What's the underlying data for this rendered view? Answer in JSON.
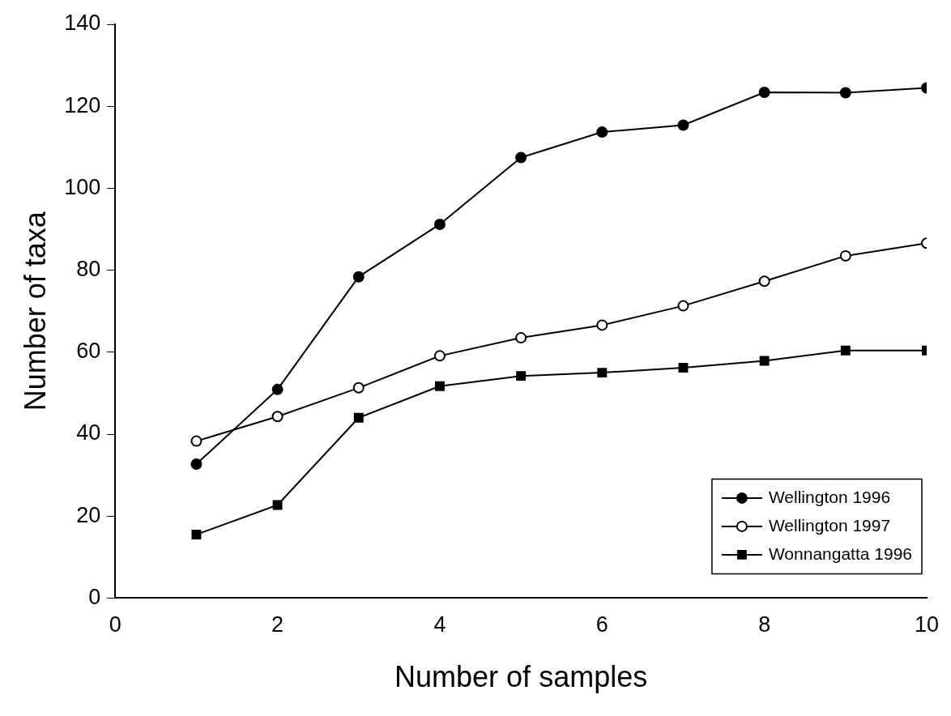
{
  "chart_data": {
    "type": "line",
    "xlabel": "Number of samples",
    "ylabel": "Number of taxa",
    "x": [
      1,
      2,
      3,
      4,
      5,
      6,
      7,
      8,
      9,
      10
    ],
    "xlim": [
      0,
      10
    ],
    "xticks": [
      0,
      2,
      4,
      6,
      8,
      10
    ],
    "ylim": [
      0,
      140
    ],
    "yticks": [
      0,
      20,
      40,
      60,
      80,
      100,
      120,
      140
    ],
    "grid": false,
    "legend": "bottom right",
    "line_style": "solid",
    "series": [
      {
        "name": "Wellington 1996",
        "color": "#000000",
        "marker": "circle",
        "values": [
          32.7,
          50.9,
          78.4,
          91.2,
          107.5,
          113.7,
          115.4,
          123.4,
          123.3,
          124.5
        ]
      },
      {
        "name": "Wellington 1997",
        "color": "#000000",
        "marker": "open circle",
        "values": [
          38.3,
          44.3,
          51.3,
          59.1,
          63.5,
          66.6,
          71.3,
          77.3,
          83.5,
          86.6
        ]
      },
      {
        "name": "Wonnangatta 1996",
        "color": "#000000",
        "marker": "square",
        "values": [
          15.5,
          22.7,
          44,
          51.7,
          54.2,
          55,
          56.2,
          57.9,
          60.4,
          60.4
        ]
      }
    ]
  }
}
